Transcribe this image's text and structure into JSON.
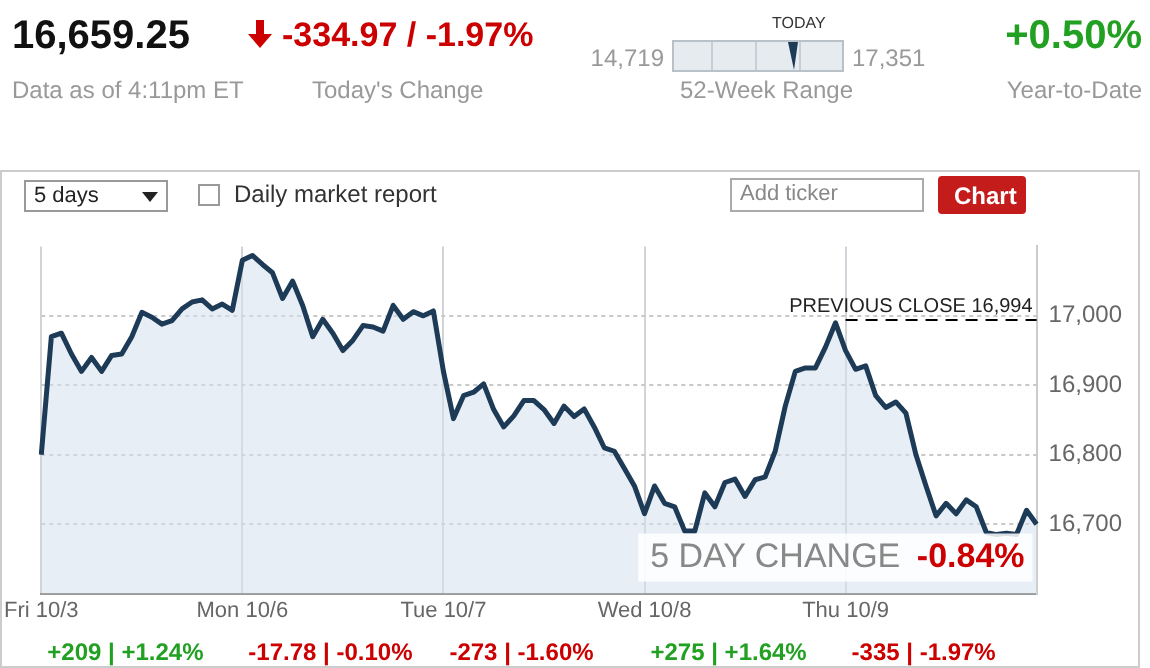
{
  "chart_data": [
    {
      "type": "other",
      "annotations": [
        "16,659.25",
        "Data as of 4:11pm ET",
        "-334.97 / -1.97%",
        "Today's Change",
        "14,719",
        "TODAY",
        "17,351",
        "52-Week Range",
        "+0.50%",
        "Year-to-Date"
      ]
    },
    {
      "type": "area",
      "categories": [
        "Fri 10/3",
        null,
        null,
        null,
        null,
        null,
        null,
        null,
        null,
        null,
        null,
        null,
        null,
        null,
        null,
        null,
        null,
        null,
        null,
        null,
        "Mon 10/6",
        null,
        null,
        null,
        null,
        null,
        null,
        null,
        null,
        null,
        null,
        null,
        null,
        null,
        null,
        null,
        null,
        null,
        null,
        null,
        "Tue 10/7",
        null,
        null,
        null,
        null,
        null,
        null,
        null,
        null,
        null,
        null,
        null,
        null,
        null,
        null,
        null,
        null,
        null,
        null,
        null,
        "Wed 10/8",
        null,
        null,
        null,
        null,
        null,
        null,
        null,
        null,
        null,
        null,
        null,
        null,
        null,
        null,
        null,
        null,
        null,
        null,
        null,
        "Thu 10/9",
        null,
        null,
        null,
        null,
        null,
        null,
        null,
        null,
        null,
        null,
        null,
        null,
        null,
        null,
        null,
        null,
        null,
        null,
        null
      ],
      "series": [
        {
          "color": "#1d3b57",
          "values": [
            16800,
            16970,
            16975,
            16945,
            16920,
            16940,
            16920,
            16943,
            16945,
            16970,
            17005,
            16998,
            16988,
            16993,
            17010,
            17020,
            17023,
            17010,
            17017,
            17008,
            17080,
            17087,
            17074,
            17062,
            17025,
            17050,
            17015,
            16970,
            16995,
            16975,
            16950,
            16965,
            16986,
            16984,
            16978,
            17015,
            16995,
            17006,
            17000,
            17007,
            16920,
            16852,
            16885,
            16890,
            16902,
            16865,
            16840,
            16856,
            16878,
            16878,
            16865,
            16845,
            16870,
            16855,
            16866,
            16840,
            16810,
            16805,
            16780,
            16755,
            16715,
            16755,
            16730,
            16725,
            16690,
            16690,
            16745,
            16725,
            16760,
            16765,
            16740,
            16764,
            16768,
            16805,
            16870,
            16920,
            16925,
            16925,
            16955,
            16990,
            16950,
            16923,
            16928,
            16885,
            16868,
            16876,
            16860,
            16800,
            16755,
            16712,
            16730,
            16715,
            16735,
            16725,
            16688,
            16685,
            16687,
            16685,
            16720,
            16700
          ]
        }
      ],
      "ylim": [
        16600,
        17100
      ],
      "yticks": [
        {
          "value": 16700,
          "label": "16,700"
        },
        {
          "value": 16800,
          "label": "16,800"
        },
        {
          "value": 16900,
          "label": "16,900"
        },
        {
          "value": 17000,
          "label": "17,000"
        }
      ],
      "ref_lines": [
        {
          "axis": "y",
          "value": 16994,
          "label": "PREVIOUS CLOSE 16,994",
          "line_style": "dashed",
          "color": "#000000"
        }
      ],
      "annotations": [
        "5 days",
        "Daily market report",
        "Add ticker",
        "Chart",
        "5 DAY CHANGE",
        "-0.84%",
        "+209 | +1.24%",
        "-17.78 | -0.10%",
        "-273 | -1.60%",
        "+275 | +1.64%",
        "-335 | -1.97%"
      ],
      "grid": true,
      "legend": false,
      "marker": "none",
      "line_style": "solid"
    }
  ]
}
